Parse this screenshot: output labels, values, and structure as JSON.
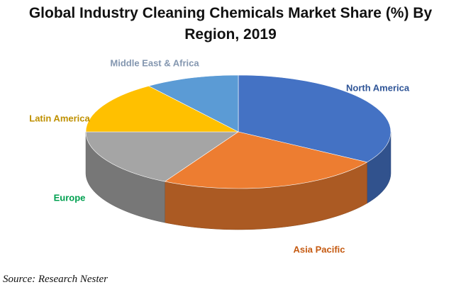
{
  "chart_data": {
    "type": "pie3d",
    "title": "Global Industry Cleaning Chemicals Market Share (%) By Region, 2019",
    "categories": [
      "North America",
      "Asia Pacific",
      "Europe",
      "Latin America",
      "Middle East & Africa"
    ],
    "values": [
      34,
      24,
      17,
      15,
      10
    ],
    "colors": [
      "#4472c4",
      "#ed7d31",
      "#a5a5a5",
      "#ffc000",
      "#5b9bd5"
    ],
    "label_colors": [
      "#2f5597",
      "#c55a11",
      "#00a050",
      "#bf9000",
      "#8497b0"
    ],
    "source": "Source: Research Nester"
  }
}
